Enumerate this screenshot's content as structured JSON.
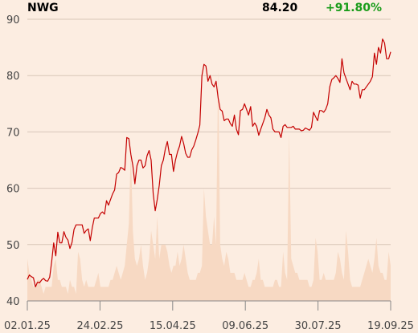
{
  "header": {
    "ticker": "NWG",
    "price": "84.20",
    "change": "+91.80%"
  },
  "colors": {
    "background": "#fcede1",
    "line": "#c40000",
    "volume": "#f7d9c3",
    "grid": "#d8c6b8",
    "change_positive": "#1a9c1a"
  },
  "chart_data": {
    "type": "line",
    "title": "",
    "xlabel": "",
    "ylabel": "",
    "ylim": [
      40,
      92
    ],
    "yticks": [
      40,
      50,
      60,
      70,
      80,
      90
    ],
    "xtick_labels": [
      "02.01.25",
      "24.02.25",
      "15.04.25",
      "09.06.25",
      "30.07.25",
      "19.09.25"
    ],
    "grid": true,
    "series": [
      {
        "values": [
          43.8,
          44.6,
          44.3,
          44.1,
          42.5,
          43.3,
          43.2,
          43.7,
          44.0,
          43.6,
          43.5,
          44.2,
          47.0,
          50.3,
          48.0,
          52.2,
          50.3,
          50.3,
          52.3,
          51.3,
          50.8,
          49.3,
          50.4,
          52.7,
          53.5,
          53.5,
          53.5,
          53.5,
          52.0,
          52.5,
          52.8,
          50.7,
          53.0,
          54.7,
          54.7,
          54.7,
          55.5,
          55.8,
          55.4,
          57.8,
          57.0,
          58.0,
          59.0,
          59.7,
          62.5,
          62.8,
          63.7,
          63.5,
          63.2,
          69.0,
          68.8,
          66.0,
          64.0,
          60.8,
          64.0,
          65.0,
          65.0,
          63.6,
          64.0,
          65.8,
          66.7,
          65.0,
          59.0,
          56.0,
          58.0,
          60.5,
          64.0,
          65.0,
          67.0,
          68.3,
          66.0,
          66.0,
          63.0,
          65.0,
          66.5,
          67.5,
          69.2,
          68.0,
          66.2,
          65.5,
          65.5,
          66.8,
          67.5,
          68.6,
          69.8,
          71.2,
          80.0,
          82.0,
          81.7,
          79.0,
          80.0,
          78.5,
          78.0,
          79.0,
          76.0,
          74.0,
          73.7,
          72.0,
          72.3,
          72.3,
          71.5,
          71.0,
          73.0,
          70.5,
          69.5,
          73.8,
          74.0,
          75.0,
          74.0,
          73.0,
          74.5,
          71.0,
          71.6,
          71.0,
          69.4,
          70.5,
          71.5,
          72.5,
          74.0,
          73.0,
          72.5,
          70.5,
          70.0,
          70.0,
          70.0,
          69.0,
          71.0,
          71.3,
          70.8,
          70.8,
          70.8,
          71.0,
          70.5,
          70.5,
          70.5,
          70.2,
          70.3,
          70.7,
          70.5,
          70.3,
          70.8,
          73.5,
          72.7,
          72.0,
          73.8,
          73.8,
          73.5,
          74.0,
          75.0,
          78.0,
          79.3,
          79.6,
          80.0,
          79.5,
          78.8,
          83.0,
          80.5,
          79.5,
          78.5,
          77.5,
          79.0,
          78.5,
          78.5,
          78.3,
          76.0,
          77.5,
          77.5,
          78.0,
          78.5,
          79.0,
          79.8,
          84.0,
          82.0,
          85.0,
          84.0,
          86.5,
          85.8,
          83.0,
          83.0,
          84.2
        ]
      }
    ],
    "volume": [
      6,
      4,
      3,
      2,
      2,
      3,
      3,
      2,
      1,
      2,
      2,
      2,
      2,
      5,
      6,
      3,
      3,
      2,
      2,
      2,
      1,
      3,
      2,
      2,
      1,
      7,
      6,
      3,
      2,
      3,
      2,
      2,
      2,
      2,
      3,
      4,
      2,
      2,
      2,
      2,
      2,
      3,
      3,
      4,
      5,
      4,
      3,
      4,
      5,
      8,
      11,
      22,
      10,
      6,
      5,
      6,
      8,
      5,
      3,
      4,
      6,
      10,
      8,
      6,
      12,
      6,
      8,
      8,
      8,
      7,
      5,
      4,
      5,
      5,
      7,
      5,
      6,
      8,
      6,
      4,
      3,
      3,
      3,
      3,
      4,
      4,
      5,
      16,
      12,
      10,
      8,
      8,
      12,
      8,
      33,
      8,
      6,
      5,
      7,
      6,
      4,
      4,
      4,
      3,
      3,
      3,
      3,
      4,
      3,
      2,
      2,
      3,
      3,
      4,
      6,
      3,
      3,
      2,
      2,
      2,
      2,
      2,
      3,
      3,
      2,
      2,
      7,
      4,
      3,
      24,
      6,
      5,
      4,
      4,
      3,
      3,
      3,
      3,
      3,
      2,
      2,
      3,
      9,
      7,
      3,
      3,
      4,
      3,
      3,
      3,
      3,
      3,
      4,
      7,
      6,
      4,
      3,
      10,
      7,
      3,
      2,
      2,
      2,
      2,
      2,
      3,
      4,
      5,
      6,
      5,
      4,
      6,
      9,
      5,
      4,
      4,
      3,
      3,
      7,
      5
    ]
  }
}
